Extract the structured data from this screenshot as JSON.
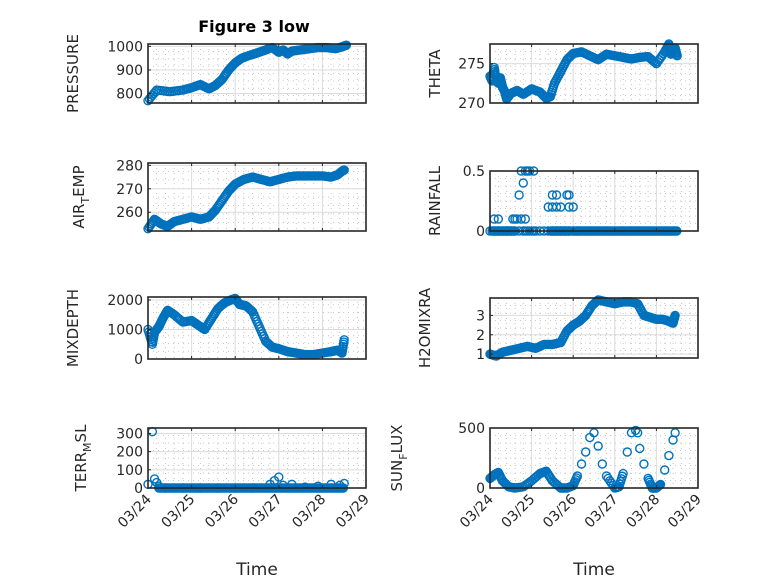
{
  "figure_title": "Figure 3 low",
  "marker_color": "#0072bd",
  "x_tick_labels": [
    "03/24",
    "03/25",
    "03/26",
    "03/27",
    "03/28",
    "03/29"
  ],
  "x_label": "Time",
  "chart_data": [
    {
      "type": "scatter",
      "id": "pressure",
      "title": "Figure 3 low",
      "xlabel": "",
      "ylabel": "PRESSURE",
      "xlim": [
        0,
        5
      ],
      "ylim": [
        760,
        1010
      ],
      "yticks": [
        800,
        900,
        1000
      ],
      "grid": true,
      "x": [
        0.0,
        0.2,
        0.5,
        0.8,
        1.0,
        1.2,
        1.4,
        1.55,
        1.7,
        1.85,
        2.0,
        2.15,
        2.3,
        2.5,
        2.7,
        2.85,
        3.0,
        3.1,
        3.2,
        3.3,
        3.5,
        3.7,
        3.9,
        4.1,
        4.3,
        4.45,
        4.55
      ],
      "y": [
        770,
        815,
        808,
        815,
        825,
        838,
        820,
        835,
        860,
        900,
        930,
        950,
        960,
        972,
        985,
        995,
        975,
        985,
        968,
        980,
        985,
        990,
        995,
        995,
        990,
        998,
        1005
      ]
    },
    {
      "type": "scatter",
      "id": "theta",
      "title": "",
      "xlabel": "",
      "ylabel": "THETA",
      "xlim": [
        0,
        5
      ],
      "ylim": [
        270,
        277.5
      ],
      "yticks": [
        270,
        275
      ],
      "grid": true,
      "x": [
        0.0,
        0.05,
        0.1,
        0.15,
        0.2,
        0.25,
        0.3,
        0.35,
        0.4,
        0.5,
        0.65,
        0.8,
        1.0,
        1.2,
        1.35,
        1.45,
        1.55,
        1.7,
        1.85,
        2.0,
        2.2,
        2.4,
        2.6,
        2.8,
        3.0,
        3.2,
        3.4,
        3.6,
        3.8,
        4.0,
        4.2,
        4.3,
        4.35,
        4.4,
        4.45,
        4.5
      ],
      "y": [
        273.4,
        272.8,
        274.5,
        273.0,
        272.5,
        273.2,
        272.0,
        271.5,
        270.5,
        271.2,
        271.6,
        271.1,
        271.8,
        271.4,
        270.6,
        270.8,
        272.5,
        274.0,
        275.5,
        276.3,
        276.5,
        276.0,
        275.5,
        276.2,
        276.0,
        275.8,
        275.6,
        275.8,
        275.9,
        275.0,
        276.5,
        277.5,
        276.2,
        276.8,
        277.0,
        276.0
      ]
    },
    {
      "type": "scatter",
      "id": "air_temp",
      "title": "",
      "xlabel": "",
      "ylabel": "AIR_TEMP",
      "xlim": [
        0,
        5
      ],
      "ylim": [
        252,
        281
      ],
      "yticks": [
        260,
        270,
        280
      ],
      "grid": true,
      "x": [
        0.0,
        0.15,
        0.3,
        0.45,
        0.6,
        0.8,
        1.0,
        1.2,
        1.4,
        1.55,
        1.7,
        1.85,
        2.0,
        2.2,
        2.4,
        2.6,
        2.8,
        3.0,
        3.2,
        3.4,
        3.6,
        3.8,
        4.0,
        4.2,
        4.35,
        4.45,
        4.5
      ],
      "y": [
        253,
        257,
        255,
        254,
        256,
        257,
        258,
        257,
        258,
        261,
        265,
        269,
        272,
        274,
        275,
        274,
        273,
        274,
        275,
        275.5,
        275.5,
        275.5,
        275.5,
        275,
        276,
        277.5,
        278
      ]
    },
    {
      "type": "scatter",
      "id": "rainfall",
      "title": "",
      "xlabel": "",
      "ylabel": "RAINFALL",
      "xlim": [
        0,
        5
      ],
      "ylim": [
        0,
        0.5
      ],
      "yticks": [
        0,
        0.5
      ],
      "grid": true,
      "x": [
        0.0,
        0.1,
        0.2,
        0.3,
        0.4,
        0.5,
        0.6,
        0.7,
        0.8,
        0.85,
        0.9,
        0.95,
        1.0,
        1.05,
        1.1,
        1.2,
        1.3,
        1.4,
        1.5,
        1.6,
        1.7,
        1.8,
        1.9,
        2.0,
        2.1,
        0.1,
        0.2,
        0.55,
        0.6,
        0.65,
        0.75,
        0.85,
        0.7,
        0.8,
        0.9,
        1.4,
        1.5,
        1.6,
        1.7,
        1.9,
        2.0,
        1.5,
        1.6,
        1.85,
        1.9,
        0.75,
        0.85,
        0.95,
        1.05
      ],
      "y": [
        0,
        0,
        0,
        0,
        0,
        0,
        0,
        0,
        0,
        0,
        0,
        0,
        0,
        0,
        0,
        0,
        0,
        0,
        0,
        0,
        0,
        0,
        0,
        0,
        0,
        0.1,
        0.1,
        0.1,
        0.1,
        0.1,
        0.1,
        0.1,
        0.3,
        0.4,
        0.5,
        0.2,
        0.2,
        0.2,
        0.2,
        0.2,
        0.2,
        0.3,
        0.3,
        0.3,
        0.3,
        0.5,
        0.5,
        0.5,
        0.5
      ],
      "zero_run_end": 4.5
    },
    {
      "type": "scatter",
      "id": "mixdepth",
      "title": "",
      "xlabel": "",
      "ylabel": "MIXDEPTH",
      "xlim": [
        0,
        5
      ],
      "ylim": [
        0,
        2100
      ],
      "yticks": [
        0,
        1000,
        2000
      ],
      "grid": true,
      "x": [
        0.0,
        0.1,
        0.15,
        0.25,
        0.35,
        0.45,
        0.6,
        0.8,
        1.0,
        1.15,
        1.3,
        1.45,
        1.6,
        1.75,
        1.9,
        2.0,
        2.1,
        2.25,
        2.4,
        2.55,
        2.7,
        2.85,
        3.0,
        3.2,
        3.4,
        3.6,
        3.8,
        4.0,
        4.2,
        4.35,
        4.45,
        4.5
      ],
      "y": [
        1000,
        500,
        900,
        1100,
        1400,
        1650,
        1500,
        1250,
        1300,
        1150,
        1000,
        1350,
        1700,
        1900,
        2000,
        2050,
        1850,
        1800,
        1600,
        1100,
        600,
        400,
        350,
        250,
        200,
        150,
        150,
        200,
        250,
        300,
        200,
        650
      ]
    },
    {
      "type": "scatter",
      "id": "h2omixra",
      "title": "",
      "xlabel": "",
      "ylabel": "H2OMIXRA",
      "xlim": [
        0,
        5
      ],
      "ylim": [
        0.8,
        3.9
      ],
      "yticks": [
        1,
        2,
        3
      ],
      "grid": true,
      "x": [
        0.0,
        0.15,
        0.3,
        0.5,
        0.7,
        0.9,
        1.1,
        1.3,
        1.5,
        1.7,
        1.85,
        2.0,
        2.15,
        2.3,
        2.45,
        2.6,
        2.8,
        3.0,
        3.2,
        3.4,
        3.55,
        3.7,
        3.85,
        4.0,
        4.15,
        4.3,
        4.4,
        4.45
      ],
      "y": [
        1.0,
        0.9,
        1.1,
        1.2,
        1.3,
        1.4,
        1.3,
        1.5,
        1.5,
        1.6,
        2.2,
        2.5,
        2.7,
        3.0,
        3.5,
        3.8,
        3.7,
        3.6,
        3.7,
        3.7,
        3.6,
        3.0,
        2.9,
        2.8,
        2.8,
        2.7,
        2.6,
        3.0
      ]
    },
    {
      "type": "scatter",
      "id": "terr_msl",
      "title": "",
      "xlabel": "Time",
      "ylabel": "TERR_MSL",
      "xlim": [
        0,
        5
      ],
      "ylim": [
        0,
        330
      ],
      "yticks": [
        0,
        100,
        200,
        300
      ],
      "grid": true,
      "x": [
        0.0,
        0.1,
        0.15,
        0.2,
        0.25,
        0.4,
        0.8,
        1.2,
        1.6,
        2.0,
        2.4,
        2.8,
        2.9,
        3.0,
        3.1,
        3.3,
        3.6,
        3.9,
        4.2,
        4.4,
        4.5
      ],
      "y": [
        20,
        310,
        50,
        30,
        10,
        0,
        0,
        0,
        0,
        0,
        0,
        20,
        40,
        60,
        15,
        20,
        5,
        10,
        20,
        15,
        25
      ],
      "zero_run_end": 4.5
    },
    {
      "type": "scatter",
      "id": "sun_flux",
      "title": "",
      "xlabel": "Time",
      "ylabel": "SUN_FLUX",
      "xlim": [
        0,
        5
      ],
      "ylim": [
        0,
        500
      ],
      "yticks": [
        0,
        500
      ],
      "grid": true,
      "x": [
        0.0,
        0.1,
        0.2,
        0.3,
        0.45,
        0.6,
        0.8,
        1.0,
        1.2,
        1.35,
        1.5,
        1.7,
        1.85,
        2.0,
        2.1,
        2.2,
        2.3,
        2.4,
        2.5,
        2.6,
        2.7,
        2.8,
        3.0,
        3.1,
        3.2,
        3.3,
        3.4,
        3.5,
        3.55,
        3.6,
        3.7,
        3.8,
        3.9,
        4.0,
        4.1,
        4.2,
        4.3,
        4.4,
        4.45
      ],
      "y": [
        80,
        110,
        130,
        60,
        10,
        0,
        10,
        60,
        120,
        140,
        60,
        0,
        0,
        20,
        100,
        200,
        300,
        420,
        460,
        350,
        200,
        100,
        0,
        10,
        120,
        300,
        460,
        480,
        460,
        330,
        200,
        80,
        0,
        0,
        30,
        150,
        270,
        400,
        460
      ]
    }
  ]
}
